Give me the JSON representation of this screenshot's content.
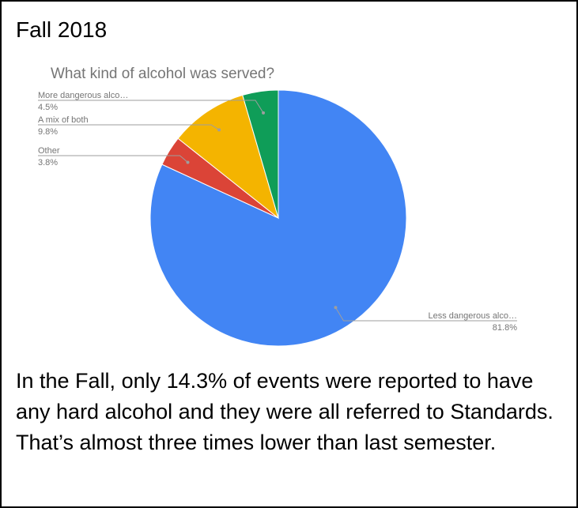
{
  "heading": "Fall 2018",
  "caption": "In the Fall, only 14.3% of events were reported to have any hard alcohol and they were all referred to Standards. That’s almost three times lower than last semester.",
  "chart_data": {
    "type": "pie",
    "title": "What kind of alcohol was served?",
    "slices": [
      {
        "label": "Less dangerous alco…",
        "value": 81.8,
        "value_label": "81.8%",
        "color": "#4285f4"
      },
      {
        "label": "Other",
        "value": 3.8,
        "value_label": "3.8%",
        "color": "#db4437"
      },
      {
        "label": "A mix of both",
        "value": 9.8,
        "value_label": "9.8%",
        "color": "#f4b400"
      },
      {
        "label": "More dangerous alco…",
        "value": 4.5,
        "value_label": "4.5%",
        "color": "#0f9d58"
      }
    ],
    "legend": "none",
    "colors": {
      "label_text": "#757575",
      "title_text": "#757575",
      "leader_line": "#9e9e9e"
    }
  }
}
